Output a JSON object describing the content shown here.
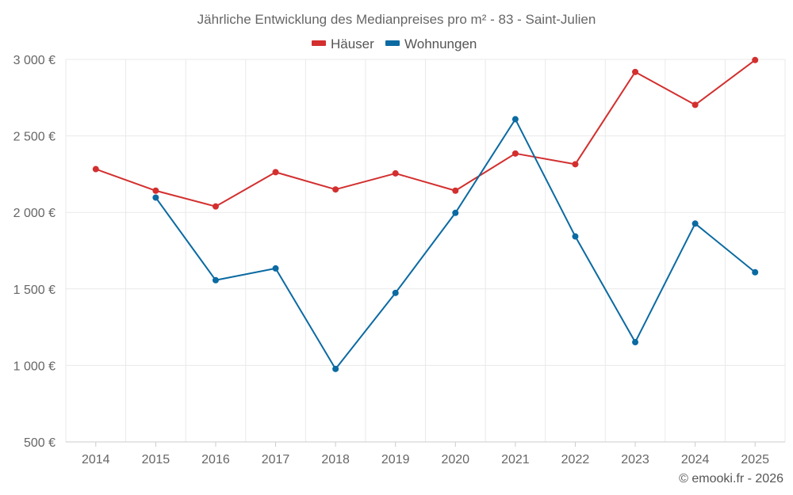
{
  "chart_data": {
    "type": "line",
    "title": "Jährliche Entwicklung des Medianpreises pro m² - 83 - Saint-Julien",
    "categories": [
      "2014",
      "2015",
      "2016",
      "2017",
      "2018",
      "2019",
      "2020",
      "2021",
      "2022",
      "2023",
      "2024",
      "2025"
    ],
    "series": [
      {
        "name": "Häuser",
        "color": "#d32f2f",
        "values": [
          2283,
          2142,
          2039,
          2263,
          2150,
          2255,
          2142,
          2385,
          2315,
          2918,
          2703,
          2996
        ]
      },
      {
        "name": "Wohnungen",
        "color": "#0b6aa2",
        "values": [
          null,
          2097,
          1557,
          1634,
          977,
          1474,
          1997,
          2609,
          1843,
          1152,
          1927,
          1609
        ]
      }
    ],
    "yticks": [
      500,
      1000,
      1500,
      2000,
      2500,
      3000
    ],
    "ytick_labels": [
      "500 €",
      "1 000 €",
      "1 500 €",
      "2 000 €",
      "2 500 €",
      "3 000 €"
    ],
    "ylim": [
      500,
      3000
    ],
    "xlabel": "",
    "ylabel": "",
    "grid": true,
    "legend_position": "top-center"
  },
  "credit": "© emooki.fr - 2026"
}
